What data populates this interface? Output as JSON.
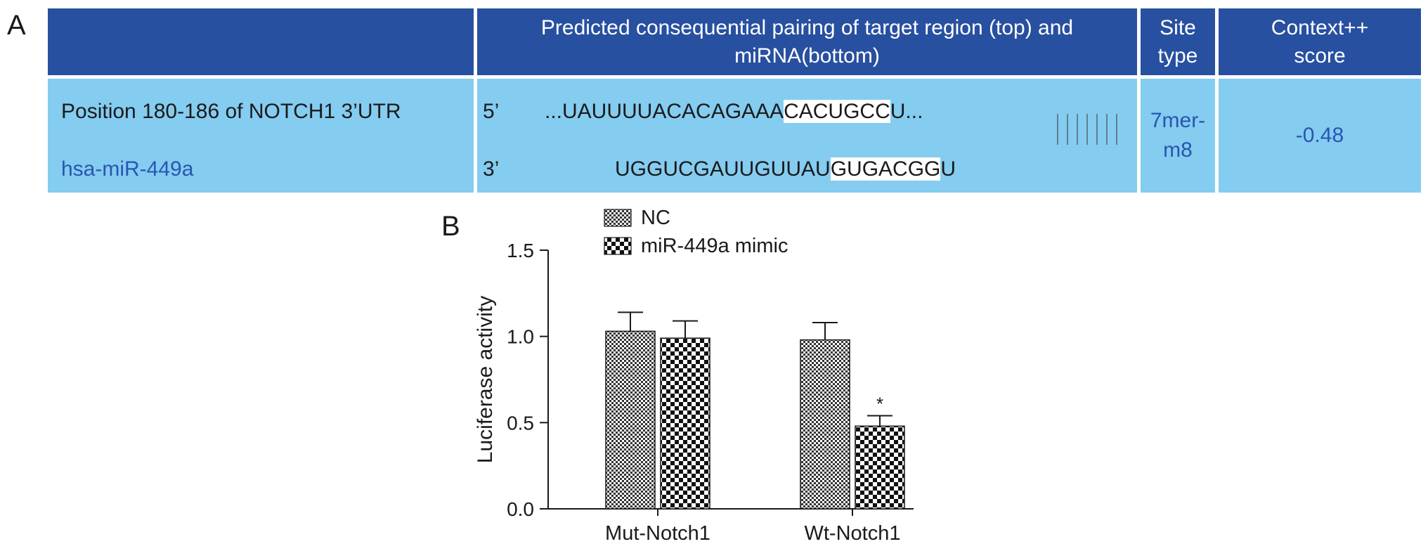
{
  "panel_a": {
    "letter": "A",
    "headers": {
      "pairing": "Predicted consequential pairing of target region (top) and miRNA(bottom)",
      "site_type": "Site type",
      "context": "Context++ score"
    },
    "row": {
      "position_label": "Position 180-186 of NOTCH1 3’UTR",
      "mirna_label": "hsa-miR-449a",
      "five_prime": "5’",
      "three_prime": "3’",
      "target_seq_prefix": "...UAUUUUACACAGAAA",
      "target_seq_highlight": "CACUGCC",
      "target_seq_suffix": "U...",
      "mirna_seq_prefix": "UGGUCGAUUGUUAU",
      "mirna_seq_highlight": "GUGACGG",
      "mirna_seq_suffix": "U",
      "site_type": "7mer-m8",
      "context_score": "-0.48"
    },
    "colors": {
      "header": "#2850a0",
      "body": "#84ccf0",
      "accent_text": "#2a55b0"
    }
  },
  "panel_b": {
    "letter": "B"
  },
  "chart_data": {
    "type": "bar",
    "categories": [
      "Mut-Notch1",
      "Wt-Notch1"
    ],
    "series": [
      {
        "name": "NC",
        "values": [
          1.03,
          0.98
        ],
        "errors": [
          0.11,
          0.1
        ],
        "pattern": "fine-checker"
      },
      {
        "name": "miR-449a mimic",
        "values": [
          0.99,
          0.48
        ],
        "errors": [
          0.1,
          0.06
        ],
        "pattern": "coarse-checker"
      }
    ],
    "significance": [
      {
        "category": "Wt-Notch1",
        "series": "miR-449a mimic",
        "mark": "*"
      }
    ],
    "ylabel": "Luciferase activity",
    "xlabel": "",
    "ylim": [
      0.0,
      1.5
    ],
    "yticks": [
      "0.0",
      "0.5",
      "1.0",
      "1.5"
    ],
    "legend_placement": "top-left",
    "grid": false
  }
}
